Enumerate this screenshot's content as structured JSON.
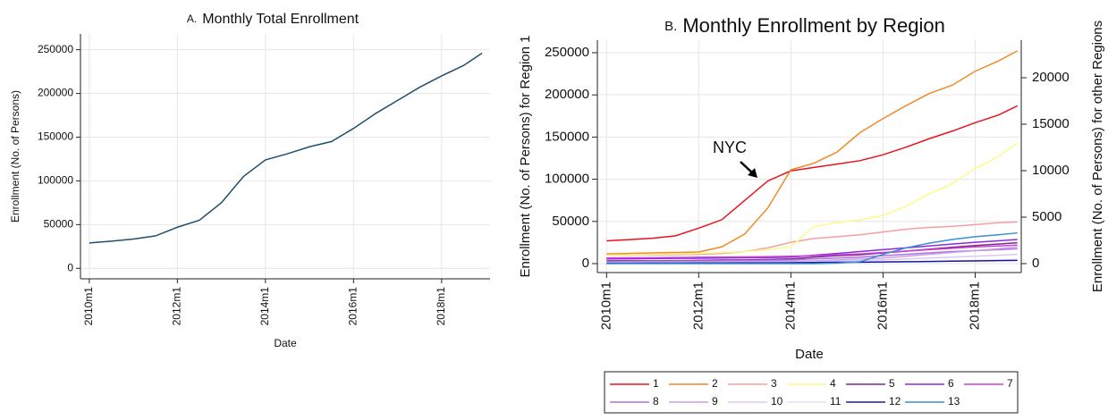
{
  "chart_data": [
    {
      "type": "line",
      "panel_label": "A.",
      "title": "Monthly Total Enrollment",
      "x_label": "Date",
      "y_label": "Enrollment (No. of Persons)",
      "x": [
        2010,
        2010.5,
        2011,
        2011.5,
        2012,
        2012.5,
        2013,
        2013.5,
        2014,
        2014.5,
        2015,
        2015.5,
        2016,
        2016.5,
        2017,
        2017.5,
        2018,
        2018.5,
        2018.917
      ],
      "series": [
        {
          "name": "Total",
          "color": "#1f4e6e",
          "values": [
            29000,
            31000,
            33500,
            37000,
            47000,
            55000,
            75000,
            105000,
            124000,
            131000,
            139000,
            145000,
            160000,
            177000,
            192000,
            207000,
            220000,
            232000,
            246000
          ]
        }
      ],
      "xlim": [
        2009.8,
        2019.1
      ],
      "xticks": [
        {
          "value": 2010,
          "label": "2010m1"
        },
        {
          "value": 2012,
          "label": "2012m1"
        },
        {
          "value": 2014,
          "label": "2014m1"
        },
        {
          "value": 2016,
          "label": "2016m1"
        },
        {
          "value": 2018,
          "label": "2018m1"
        }
      ],
      "ylim": [
        -12000,
        268000
      ],
      "yticks": [
        0,
        50000,
        100000,
        150000,
        200000,
        250000
      ],
      "grid": true
    },
    {
      "type": "line",
      "panel_label": "B.",
      "title": "Monthly Enrollment by Region",
      "x_label": "Date",
      "y_label": "Enrollment (No. of Persons) for Region 1",
      "y2_label": "Enrollment (No. of Persons) for other Regions",
      "annotation": "NYC",
      "x": [
        2010,
        2010.5,
        2011,
        2011.5,
        2012,
        2012.5,
        2013,
        2013.5,
        2014,
        2014.5,
        2015,
        2015.5,
        2016,
        2016.5,
        2017,
        2017.5,
        2018,
        2018.5,
        2018.917
      ],
      "series": [
        {
          "name": "1",
          "color": "#e8141c",
          "values": [
            27000,
            28500,
            30000,
            33000,
            42000,
            52000,
            75000,
            98000,
            110000,
            114000,
            118000,
            122000,
            129000,
            138000,
            148000,
            157000,
            167000,
            176000,
            187000
          ]
        },
        {
          "name": "2",
          "color": "#f08a24",
          "axis": "y2",
          "values": [
            1050,
            1100,
            1150,
            1200,
            1250,
            1800,
            3200,
            6000,
            10100,
            10800,
            12000,
            14100,
            15600,
            17000,
            18300,
            19200,
            20700,
            21800,
            22900
          ]
        },
        {
          "name": "3",
          "color": "#f4a0a0",
          "axis": "y2",
          "values": [
            900,
            920,
            940,
            960,
            1000,
            1100,
            1300,
            1700,
            2300,
            2700,
            2900,
            3100,
            3400,
            3700,
            3900,
            4000,
            4200,
            4400,
            4500
          ]
        },
        {
          "name": "4",
          "color": "#fbfb8a",
          "axis": "y2",
          "values": [
            900,
            950,
            1000,
            1050,
            1100,
            1200,
            1300,
            1500,
            1800,
            4000,
            4400,
            4700,
            5200,
            6200,
            7500,
            8600,
            10200,
            11500,
            13000
          ]
        },
        {
          "name": "5",
          "color": "#7b2a8c",
          "axis": "y2",
          "values": [
            300,
            300,
            300,
            320,
            350,
            380,
            400,
            450,
            500,
            700,
            850,
            950,
            1150,
            1350,
            1550,
            1750,
            1950,
            2100,
            2250
          ]
        },
        {
          "name": "6",
          "color": "#8a2be2",
          "axis": "y2",
          "values": [
            500,
            520,
            540,
            560,
            580,
            600,
            620,
            650,
            700,
            900,
            1100,
            1300,
            1500,
            1700,
            1900,
            2100,
            2300,
            2450,
            2600
          ]
        },
        {
          "name": "7",
          "color": "#c83fd6",
          "axis": "y2",
          "values": [
            600,
            620,
            640,
            660,
            680,
            700,
            720,
            750,
            800,
            850,
            950,
            1050,
            1200,
            1350,
            1500,
            1650,
            1800,
            1900,
            2000
          ]
        },
        {
          "name": "8",
          "color": "#b073d9",
          "axis": "y2",
          "values": [
            200,
            220,
            240,
            260,
            280,
            300,
            320,
            350,
            400,
            500,
            600,
            700,
            850,
            1000,
            1150,
            1300,
            1400,
            1500,
            1600
          ]
        },
        {
          "name": "9",
          "color": "#c8a0e8",
          "axis": "y2",
          "values": [
            150,
            160,
            170,
            180,
            190,
            200,
            220,
            240,
            260,
            300,
            400,
            500,
            600,
            800,
            1000,
            1200,
            1400,
            1600,
            1800
          ]
        },
        {
          "name": "10",
          "color": "#dcc8f0",
          "axis": "y2",
          "values": [
            100,
            100,
            110,
            110,
            120,
            130,
            140,
            150,
            160,
            200,
            260,
            320,
            400,
            500,
            600,
            700,
            800,
            900,
            1000
          ]
        },
        {
          "name": "11",
          "color": "#e4e2f2",
          "axis": "y2",
          "values": [
            50,
            50,
            50,
            60,
            60,
            60,
            70,
            70,
            80,
            90,
            100,
            120,
            150,
            200,
            250,
            300,
            350,
            400,
            450
          ]
        },
        {
          "name": "12",
          "color": "#1a1aa0",
          "axis": "y2",
          "values": [
            50,
            50,
            60,
            60,
            70,
            70,
            80,
            90,
            100,
            120,
            140,
            160,
            180,
            200,
            230,
            260,
            290,
            320,
            350
          ]
        },
        {
          "name": "13",
          "color": "#3a8fd8",
          "axis": "y2",
          "values": [
            0,
            0,
            0,
            0,
            0,
            0,
            0,
            0,
            0,
            0,
            50,
            200,
            1000,
            1700,
            2200,
            2600,
            2900,
            3100,
            3300
          ]
        }
      ],
      "xlim": [
        2009.8,
        2019.0
      ],
      "xticks": [
        {
          "value": 2010,
          "label": "2010m1"
        },
        {
          "value": 2012,
          "label": "2012m1"
        },
        {
          "value": 2014,
          "label": "2014m1"
        },
        {
          "value": 2016,
          "label": "2016m1"
        },
        {
          "value": 2018,
          "label": "2018m1"
        }
      ],
      "ylim": [
        -10600,
        264800
      ],
      "yticks": [
        0,
        50000,
        100000,
        150000,
        200000,
        250000
      ],
      "y2lim": [
        -961,
        24040
      ],
      "y2ticks": [
        0,
        5000,
        10000,
        15000,
        20000
      ],
      "grid": true
    }
  ]
}
